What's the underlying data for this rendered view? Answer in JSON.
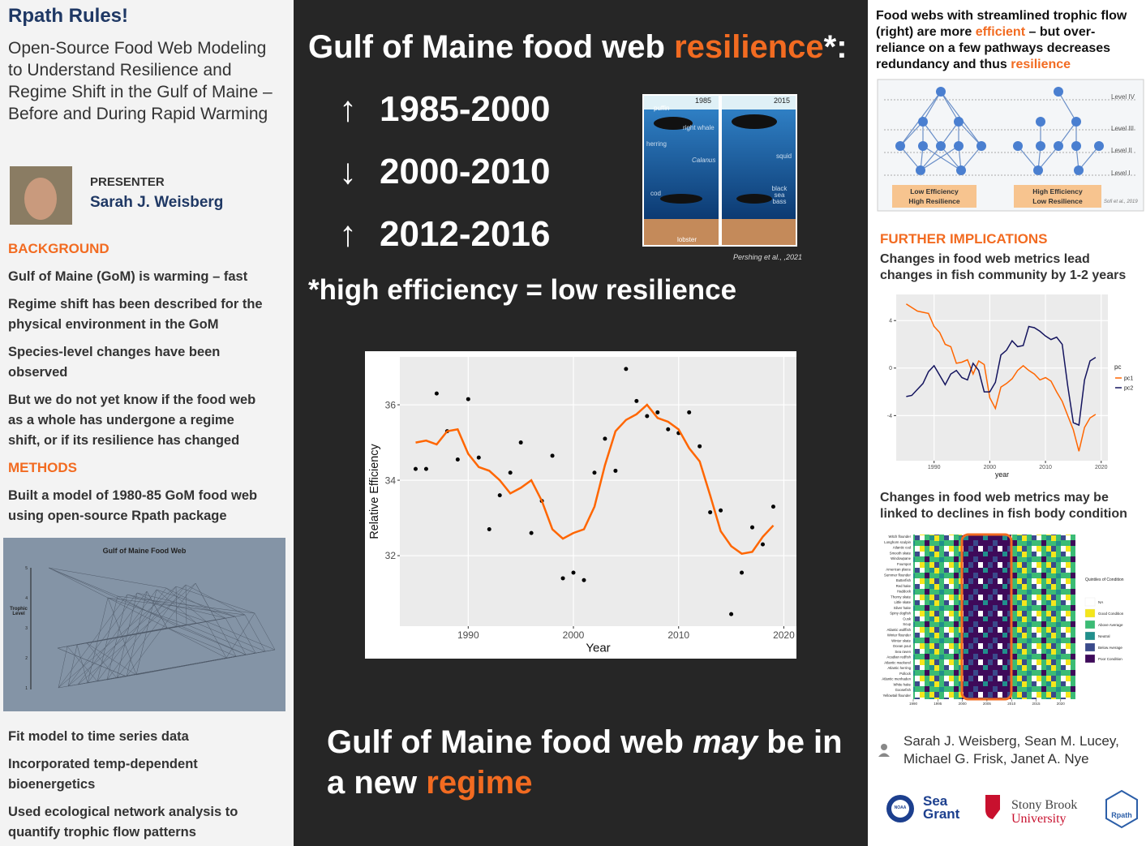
{
  "left": {
    "title": "Rpath Rules!",
    "subtitle": "Open-Source Food Web Modeling to Understand Resilience and Regime Shift in the Gulf of Maine – Before and During Rapid Warming",
    "presenter_label": "PRESENTER",
    "presenter": "Sarah J. Weisberg",
    "background_heading": "BACKGROUND",
    "background": [
      "Gulf of Maine (GoM) is warming – fast",
      "Regime shift has been described for the physical environment in the GoM",
      "Species-level changes have been observed",
      "But we do not yet know if the food web as a whole has undergone a regime shift, or if its resilience has changed"
    ],
    "methods_heading": "METHODS",
    "methods": [
      "Built a model of 1980-85 GoM food web using open-source Rpath package"
    ],
    "foodweb": {
      "title": "Gulf of Maine Food Web",
      "axis_label": "Trophic Level",
      "ticks": [
        1,
        2,
        3,
        4,
        5
      ]
    },
    "methods_more": [
      "Fit model to time series data",
      "Incorporated temp-dependent bioenergetics",
      "Used ecological network analysis to quantify trophic flow patterns"
    ]
  },
  "center": {
    "heading": "Gulf of Maine food web ",
    "heading_highlight": "resilience",
    "heading_end": "*:",
    "periods": [
      {
        "arrow": "↑",
        "years": "1985-2000"
      },
      {
        "arrow": "↓",
        "years": "2000-2010"
      },
      {
        "arrow": "↑",
        "years": "2012-2016"
      }
    ],
    "footnote": "*high efficiency = low resilience",
    "figure": {
      "left_year": "1985",
      "right_year": "2015",
      "labels_left": [
        "puffin",
        "right whale",
        "herring",
        "Calanus",
        "cod",
        "lobster"
      ],
      "labels_right": [
        "squid",
        "black sea bass"
      ],
      "citation": "Pershing et al., ,2021"
    },
    "conclusion": "Gulf of Maine food web ",
    "conclusion_em": "may",
    "conclusion_mid": " be in a new ",
    "conclusion_highlight": "regime"
  },
  "right": {
    "intro": "Food webs with streamlined trophic flow (right) are more ",
    "intro_hl1": "efficient",
    "intro_mid": " – but over-reliance on a few pathways decreases redundancy and thus ",
    "intro_hl2": "resilience",
    "diagram": {
      "levels": [
        "Level IV",
        "Level III",
        "Level II",
        "Level I"
      ],
      "left_label": [
        "Low Efficiency",
        "High Resilience"
      ],
      "right_label": [
        "High Efficiency",
        "Low Resilience"
      ],
      "citation": "Sofi et al., 2019"
    },
    "implications_heading": "FURTHER IMPLICATIONS",
    "caption1": "Changes in food web metrics lead changes in fish community by 1-2 years",
    "caption2": "Changes in food web metrics may be linked to declines in fish body condition",
    "heatmap": {
      "species": [
        "Witch flounder",
        "Longhorn sculpin",
        "Atlantic cod",
        "Smooth skate",
        "Windowpane",
        "Fourspot",
        "American plaice",
        "Summer flounder",
        "Butterfish",
        "Red hake",
        "Haddock",
        "Thorny skate",
        "Little skate",
        "Silver hake",
        "Spiny dogfish",
        "Cusk",
        "Scup",
        "Atlantic wolffish",
        "Winter flounder",
        "Winter skate",
        "Ocean pout",
        "Sea raven",
        "Acadian redfish",
        "Atlantic mackerel",
        "Atlantic herring",
        "Pollock",
        "Atlantic menhaden",
        "White hake",
        "Goosefish",
        "Yellowtail flounder"
      ],
      "xlim": [
        1990,
        2023
      ],
      "xticks": [
        1990,
        1995,
        2000,
        2005,
        2010,
        2015,
        2020
      ],
      "legend_title": "Quintiles of Condition",
      "legend": [
        {
          "label": "NA",
          "color": "#ffffff"
        },
        {
          "label": "Good Condition",
          "color": "#f4e61c"
        },
        {
          "label": "Above Average",
          "color": "#3bbb75"
        },
        {
          "label": "Neutral",
          "color": "#218f8c"
        },
        {
          "label": "Below Average",
          "color": "#3a4a8b"
        },
        {
          "label": "Poor Condition",
          "color": "#3e0a5a"
        }
      ]
    },
    "authors": "Sarah J. Weisberg, Sean M. Lucey, Michael G. Frisk, Janet A. Nye",
    "logos": {
      "noaa": "NOAA",
      "seagrant": [
        "Sea",
        "Grant"
      ],
      "stonybrook": [
        "Stony Brook",
        "University"
      ],
      "rpath": "Rpath"
    }
  },
  "chart_data": [
    {
      "type": "scatter",
      "xlabel": "Year",
      "ylabel": "Relative Efficiency",
      "x": [
        1985,
        1986,
        1987,
        1988,
        1989,
        1990,
        1991,
        1992,
        1993,
        1994,
        1995,
        1996,
        1997,
        1998,
        1999,
        2000,
        2001,
        2002,
        2003,
        2004,
        2005,
        2006,
        2007,
        2008,
        2009,
        2010,
        2011,
        2012,
        2013,
        2014,
        2015,
        2016,
        2017,
        2018,
        2019
      ],
      "series": [
        {
          "type": "point",
          "color": "#000000",
          "values": [
            34.3,
            34.3,
            36.3,
            35.3,
            34.55,
            36.15,
            34.6,
            32.7,
            33.6,
            34.2,
            35.0,
            32.6,
            33.45,
            34.65,
            31.4,
            31.55,
            31.35,
            34.2,
            35.1,
            34.25,
            36.95,
            36.1,
            35.7,
            35.8,
            35.35,
            35.25,
            35.8,
            34.9,
            33.15,
            33.2,
            30.45,
            31.55,
            32.75,
            32.3,
            33.3
          ]
        },
        {
          "type": "line",
          "color": "#ff6600",
          "values": [
            35.0,
            35.05,
            34.95,
            35.3,
            35.35,
            34.7,
            34.35,
            34.25,
            34.0,
            33.65,
            33.8,
            34.0,
            33.45,
            32.7,
            32.45,
            32.6,
            32.7,
            33.3,
            34.4,
            35.3,
            35.6,
            35.75,
            36.0,
            35.65,
            35.55,
            35.35,
            34.85,
            34.5,
            33.6,
            32.65,
            32.25,
            32.05,
            32.1,
            32.5,
            32.8
          ]
        }
      ],
      "xlim": [
        1983.5,
        2021.2
      ],
      "xticks": [
        1990,
        2000,
        2010,
        2020
      ],
      "ylim": [
        30.13,
        37.27
      ],
      "yticks": [
        32,
        34,
        36
      ],
      "grid": true
    },
    {
      "type": "line",
      "xlabel": "year",
      "legend_title": "pc",
      "x": [
        1985,
        1986,
        1987,
        1988,
        1989,
        1990,
        1991,
        1992,
        1993,
        1994,
        1995,
        1996,
        1997,
        1998,
        1999,
        2000,
        2001,
        2002,
        2003,
        2004,
        2005,
        2006,
        2007,
        2008,
        2009,
        2010,
        2011,
        2012,
        2013,
        2014,
        2015,
        2016,
        2017,
        2018,
        2019
      ],
      "series": [
        {
          "name": "pc1",
          "type": "line",
          "color": "#ff6600",
          "values": [
            5.4,
            5.1,
            4.8,
            4.7,
            4.6,
            3.5,
            3.0,
            2.0,
            1.8,
            0.4,
            0.5,
            0.7,
            -0.5,
            0.6,
            0.3,
            -2.5,
            -3.4,
            -1.6,
            -1.3,
            -0.9,
            -0.2,
            0.2,
            -0.2,
            -0.5,
            -1.0,
            -0.8,
            -1.1,
            -2.0,
            -2.8,
            -4.0,
            -5.2,
            -7.0,
            -5.0,
            -4.2,
            -3.9
          ]
        },
        {
          "name": "pc2",
          "type": "line",
          "color": "#14145e",
          "values": [
            -2.4,
            -2.3,
            -1.8,
            -1.3,
            -0.3,
            0.2,
            -0.6,
            -1.4,
            -0.5,
            -0.2,
            -0.8,
            -1.0,
            0.4,
            -0.2,
            -2.0,
            -2.0,
            -1.2,
            1.1,
            1.5,
            2.3,
            1.8,
            1.9,
            3.5,
            3.4,
            3.1,
            2.7,
            2.4,
            2.6,
            2.0,
            -1.5,
            -4.6,
            -4.8,
            -1.0,
            0.6,
            0.9
          ]
        }
      ],
      "xlim": [
        1983.2,
        2021.2
      ],
      "xticks": [
        1990,
        2000,
        2010,
        2020
      ],
      "ylim": [
        -7.8,
        6.2
      ],
      "yticks": [
        -4,
        0,
        4
      ],
      "grid": true
    }
  ]
}
